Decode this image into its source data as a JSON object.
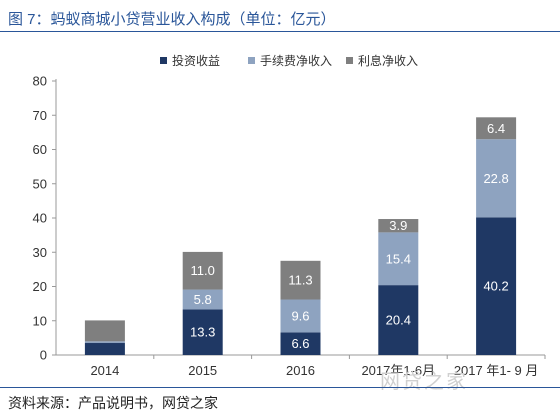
{
  "title": "图 7：蚂蚁商城小贷营业收入构成（单位：亿元）",
  "source": "资料来源：产品说明书，网贷之家",
  "watermark": "网贷之家",
  "colors": {
    "series0": "#1f3864",
    "series1": "#8ea3c0",
    "series2": "#7f7f7f"
  },
  "chart_data": {
    "type": "bar",
    "stacked": true,
    "categories": [
      "2014",
      "2015",
      "2016",
      "2017年1-6月",
      "2017 年1- 9 月"
    ],
    "series": [
      {
        "name": "投资收益",
        "values": [
          3.5,
          13.3,
          6.6,
          20.4,
          40.2
        ],
        "labels": [
          null,
          "13.3",
          "6.6",
          "20.4",
          "40.2"
        ]
      },
      {
        "name": "手续费净收入",
        "values": [
          0.5,
          5.8,
          9.6,
          15.4,
          22.8
        ],
        "labels": [
          null,
          "5.8",
          "9.6",
          "15.4",
          "22.8"
        ]
      },
      {
        "name": "利息净收入",
        "values": [
          6.1,
          11.0,
          11.3,
          3.9,
          6.4
        ],
        "labels": [
          null,
          "11.0",
          "11.3",
          "3.9",
          "6.4"
        ]
      }
    ],
    "ylim": [
      0,
      80
    ],
    "yticks": [
      "0",
      "10",
      "20",
      "30",
      "40",
      "50",
      "60",
      "70",
      "80"
    ],
    "legend": "top",
    "grid": false
  }
}
